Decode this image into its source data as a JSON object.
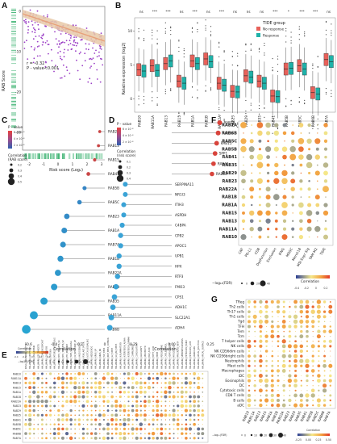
{
  "panels": {
    "A": {
      "letter": "A",
      "ylabel": "RAB Score",
      "xlabel": "Risk score (Log₂)",
      "stat_r": "r = -0.32",
      "stat_p": "P - value<0.001",
      "y_ticks": [
        "0",
        "-10",
        "-20",
        "-30"
      ],
      "x_ticks": [
        "-2",
        "-1",
        "0",
        "1",
        "2",
        "3"
      ],
      "colors": {
        "point": "#9b3fc6",
        "line": "#e8a17a",
        "band": "#e8c9a8",
        "rug": "#3cb371"
      }
    },
    "B": {
      "letter": "B",
      "ylabel": "Relative expression (log2)",
      "legend_title": "TIDE group",
      "legend": [
        {
          "name": "No response",
          "color": "#e8615a"
        },
        {
          "name": "Response",
          "color": "#1fb2a9"
        }
      ],
      "y_ticks": [
        "10",
        "5",
        "0"
      ],
      "genes": [
        "RAB10",
        "RAB11A",
        "RAB13",
        "RAB15",
        "RAB1A",
        "RAB1B",
        "RAB22A",
        "RAB23",
        "RAB29",
        "RAB35",
        "RAB41",
        "RAB5B",
        "RAB5C",
        "RAB6B",
        "RAB7A"
      ],
      "significance": [
        "ns",
        "***",
        "***",
        "ns",
        "***",
        "ns",
        "***",
        "ns",
        "ns",
        "ns",
        "***",
        "*",
        "***",
        "***",
        "ns"
      ],
      "medians_nr": [
        4.3,
        4.9,
        5.2,
        2.6,
        5.6,
        5.9,
        2.3,
        1.1,
        3.4,
        2.6,
        0.4,
        4.4,
        4.9,
        0.9,
        5.8
      ],
      "medians_r": [
        4.1,
        4.2,
        5.6,
        2.3,
        5.2,
        5.5,
        2.0,
        1.0,
        3.2,
        2.3,
        0.3,
        4.5,
        4.4,
        0.7,
        5.5
      ]
    },
    "C": {
      "letter": "C",
      "pvalue_title": "P - value",
      "pvalue_ticks": [
        "6 × 10⁻⁸",
        "4 × 10⁻⁸",
        "2 × 10⁻⁸"
      ],
      "size_title": "Correlation (RAB score)",
      "size_legend": [
        "0.2",
        "0.3",
        "0.4",
        "0.5"
      ],
      "xlabel": "Correlation",
      "x_ticks": [
        "-0.6",
        "-0.4",
        "-0.2",
        "0"
      ],
      "genes": [
        "RAB29",
        "RAB13",
        "RAB15",
        "RAB41",
        "RAB5B",
        "RAB5C",
        "RAB23",
        "RAB1A",
        "RAB7A",
        "RAB1B",
        "RAB22A",
        "RAB6B",
        "RAB35",
        "RAB11A",
        "RAB6B"
      ],
      "values": [
        -0.04,
        -0.05,
        -0.08,
        -0.13,
        -0.16,
        -0.2,
        -0.3,
        -0.32,
        -0.33,
        -0.35,
        -0.37,
        -0.4,
        -0.48,
        -0.56,
        -0.62
      ]
    },
    "D": {
      "letter": "D",
      "pvalue_title": "P - value",
      "pvalue_ticks": [
        "6 × 10⁻⁸",
        "4 × 10⁻⁸",
        "2 × 10⁻⁸"
      ],
      "size_title": "Correlation (risk score)",
      "size_legend": [
        "0.1",
        "0.2",
        "0.3",
        "0.4"
      ],
      "xlabel": "Correlation",
      "x_ticks": [
        "-0.25",
        "0.00",
        "0.25"
      ],
      "genes": [
        "RAB10",
        "RAB35",
        "RAB15",
        "SPP1",
        "RAB41",
        "RAB13",
        "SERPINA11",
        "NR1I3",
        "ITIH3",
        "ASPDH",
        "C4BPA",
        "CPB2",
        "APOC1",
        "UPB1",
        "HPX",
        "RTP3",
        "FMO3",
        "CPS1",
        "ADH1C",
        "SLC22A1",
        "ADH4"
      ],
      "values": [
        0.31,
        0.3,
        0.29,
        0.28,
        0.27,
        0.26,
        -0.3,
        -0.3,
        -0.31,
        -0.31,
        -0.32,
        -0.33,
        -0.33,
        -0.34,
        -0.34,
        -0.35,
        -0.36,
        -0.37,
        -0.38,
        -0.39,
        -0.4
      ]
    },
    "E": {
      "letter": "E",
      "legend_title": "Correlation",
      "legend_ticks": [
        "-0.4",
        "-0.2",
        "0",
        "0.2",
        "0.4"
      ],
      "size_title": "−log10(FDR)",
      "size_legend": [
        "0",
        "10",
        "20",
        "30",
        "40"
      ],
      "rows": [
        "RAB10",
        "RAB11A",
        "RAB13",
        "RAB15",
        "RAB1A",
        "RAB1B",
        "RAB22A",
        "RAB23",
        "RAB29",
        "RAB35",
        "RAB41",
        "RAB5B",
        "RAB5C",
        "RAB6B",
        "RAB7A"
      ],
      "pathways": [
        "KEGG_CIRCADIAN_RHYTHM",
        "HALLMARK_APOPTOSIS",
        "HALLMARK_DNA_REPAIR",
        "HALLMARK_E2F_TARGETS",
        "HALLMARK_G2M_CHECKPOINT",
        "HALLMARK_GLYCOLYSIS",
        "HALLMARK_HYPOXIA",
        "HALLMARK_MTORC1_SIGNALING",
        "HALLMARK_MYC_TARGETS_V1",
        "HALLMARK_MYC_TARGETS_V2",
        "HALLMARK_P53_PATHWAY",
        "HALLMARK_TNFA_SIGNALING",
        "HALLMARK_UV_RESPONSE_UP",
        "HALLMARK_ANGIOGENESIS",
        "HALLMARK_PI3K_AKT_MTOR",
        "HALLMARK_NOTCH_SIGNALING",
        "HALLMARK_HEDGEHOG",
        "HALLMARK_KRAS_UP",
        "HALLMARK_KRAS_DN",
        "HALLMARK_TGF_BETA",
        "HALLMARK_WNT_BETA_CATENIN",
        "HALLMARK_IL2_STAT5",
        "HALLMARK_IL6_JAK_STAT3",
        "HALLMARK_INFLAMMATORY",
        "HALLMARK_INTERFERON_ALPHA",
        "HALLMARK_INTERFERON_GAMMA",
        "HALLMARK_COMPLEMENT",
        "HALLMARK_COAGULATION",
        "HALLMARK_ALLOGRAFT",
        "HALLMARK_XENOBIOTIC",
        "HALLMARK_BILE_ACID",
        "HALLMARK_FATTY_ACID",
        "HALLMARK_HEME",
        "HALLMARK_PEROXISOME",
        "HALLMARK_CHOLESTEROL",
        "HALLMARK_ADIPOGENESIS",
        "HALLMARK_MYOGENESIS",
        "HALLMARK_PANCREAS_BETA",
        "HALLMARK_SPERMATOGENESIS",
        "HALLMARK_ESTROGEN_EARLY",
        "HALLMARK_ESTROGEN_LATE",
        "HALLMARK_ANDROGEN",
        "HALLMARK_APICAL_JUNCTION",
        "HALLMARK_APICAL_SURFACE"
      ]
    },
    "F": {
      "letter": "F",
      "rows": [
        "RAB7A",
        "RAB6B",
        "RAB5C",
        "RAB5B",
        "RAB41",
        "RAB35",
        "RAB29",
        "RAB23",
        "RAB22A",
        "RAB1B",
        "RAB1A",
        "RAB15",
        "RAB13",
        "RAB11A",
        "RAB10"
      ],
      "cols": [
        "CAF",
        "PD-L1",
        "CD8",
        "Dysfunction",
        "Exclusion",
        "IFNG",
        "MDSC",
        "Merck18",
        "MSI Expr Sig",
        "TAM M2",
        "TIDE"
      ],
      "legend_title": "Correlation",
      "legend_ticks": [
        "-0.4",
        "-0.2",
        "0",
        "0.2"
      ],
      "size_title": "−log₁₀(FDR)",
      "size_legend": [
        "0",
        "20",
        "40"
      ]
    },
    "G": {
      "letter": "G",
      "rows": [
        "TReg",
        "Th2 cells",
        "Th17 cells",
        "Th1 cells",
        "Tgd",
        "TFH",
        "Tem",
        "Tcm",
        "T helper cells",
        "NK cells",
        "NK CD56dim cells",
        "NK CD56bright cells",
        "Neutrophils",
        "Mast cells",
        "Macrophages",
        "iDC",
        "Eosinophils",
        "DC",
        "Cytotoxic cells",
        "CD8 T cells",
        "B cells",
        "aDC"
      ],
      "cols": [
        "RAB10",
        "RAB11A",
        "RAB13",
        "RAB15",
        "RAB1A",
        "RAB1B",
        "RAB22A",
        "RAB23",
        "RAB29",
        "RAB35",
        "RAB41",
        "RAB5B",
        "RAB5C",
        "RAB6B",
        "RAB7A"
      ],
      "legend_title": "Correlation",
      "legend_ticks": [
        "-0.25",
        "0.00",
        "0.25",
        "0.50"
      ],
      "size_title": "−log₁₀(FDR)",
      "size_legend": [
        "0",
        "10",
        "20",
        "30",
        "40"
      ]
    }
  }
}
